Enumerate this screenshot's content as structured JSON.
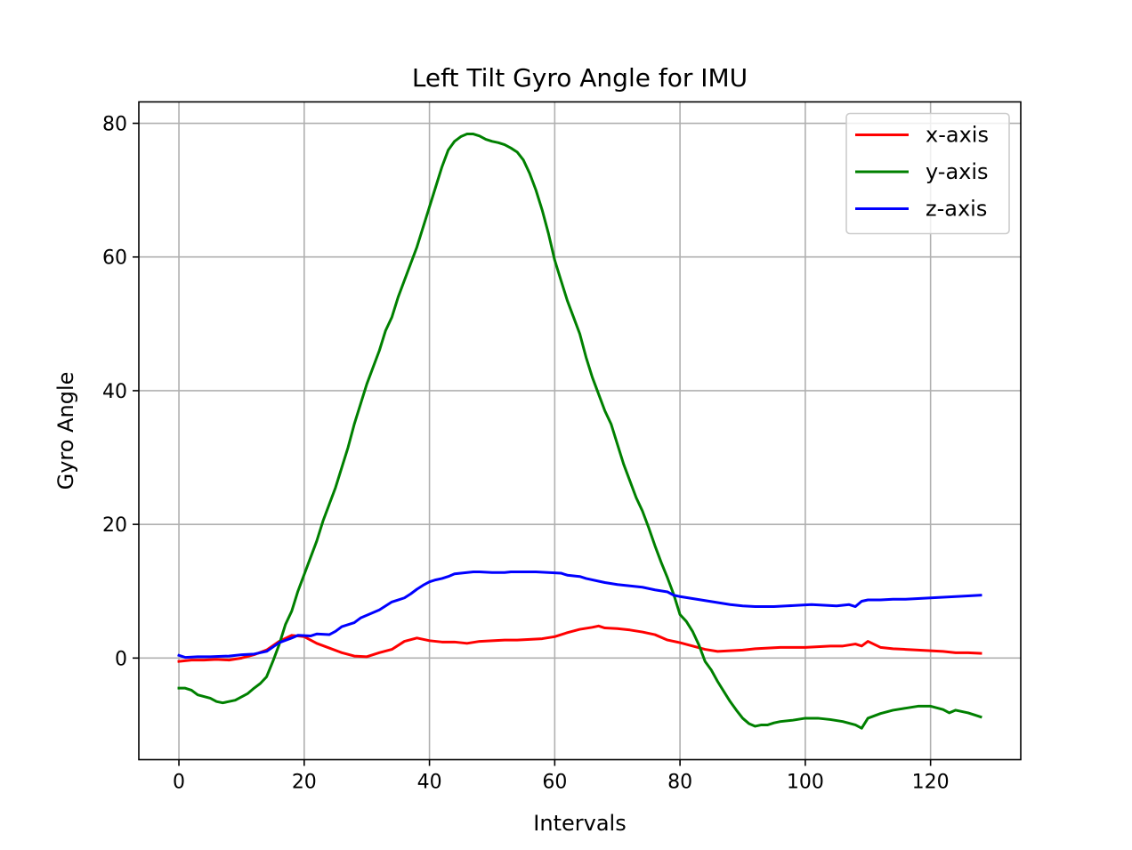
{
  "chart_data": {
    "type": "line",
    "title": "Left Tilt Gyro Angle for IMU",
    "xlabel": "Intervals",
    "ylabel": "Gyro Angle",
    "xlim": [
      -6.4,
      134.4
    ],
    "ylim": [
      -15.2,
      83.2
    ],
    "xticks": [
      0,
      20,
      40,
      60,
      80,
      100,
      120
    ],
    "yticks": [
      0,
      20,
      40,
      60,
      80
    ],
    "grid": true,
    "legend_position": "top-right",
    "series": [
      {
        "name": "x-axis",
        "color": "#ff0000",
        "points": [
          [
            0,
            -0.5
          ],
          [
            2,
            -0.3
          ],
          [
            4,
            -0.3
          ],
          [
            6,
            -0.2
          ],
          [
            8,
            -0.3
          ],
          [
            10,
            0
          ],
          [
            12,
            0.5
          ],
          [
            14,
            1.2
          ],
          [
            16,
            2.5
          ],
          [
            18,
            3.4
          ],
          [
            20,
            3.2
          ],
          [
            22,
            2.2
          ],
          [
            24,
            1.5
          ],
          [
            26,
            0.8
          ],
          [
            28,
            0.3
          ],
          [
            30,
            0.2
          ],
          [
            32,
            0.8
          ],
          [
            34,
            1.3
          ],
          [
            36,
            2.5
          ],
          [
            38,
            3
          ],
          [
            40,
            2.6
          ],
          [
            42,
            2.4
          ],
          [
            44,
            2.4
          ],
          [
            46,
            2.2
          ],
          [
            48,
            2.5
          ],
          [
            50,
            2.6
          ],
          [
            52,
            2.7
          ],
          [
            54,
            2.7
          ],
          [
            56,
            2.8
          ],
          [
            58,
            2.9
          ],
          [
            60,
            3.2
          ],
          [
            62,
            3.8
          ],
          [
            64,
            4.3
          ],
          [
            66,
            4.6
          ],
          [
            67,
            4.8
          ],
          [
            68,
            4.5
          ],
          [
            70,
            4.4
          ],
          [
            72,
            4.2
          ],
          [
            74,
            3.9
          ],
          [
            76,
            3.5
          ],
          [
            78,
            2.7
          ],
          [
            80,
            2.3
          ],
          [
            82,
            1.8
          ],
          [
            84,
            1.3
          ],
          [
            86,
            1
          ],
          [
            88,
            1.1
          ],
          [
            90,
            1.2
          ],
          [
            92,
            1.4
          ],
          [
            94,
            1.5
          ],
          [
            96,
            1.6
          ],
          [
            98,
            1.6
          ],
          [
            100,
            1.6
          ],
          [
            102,
            1.7
          ],
          [
            104,
            1.8
          ],
          [
            106,
            1.8
          ],
          [
            108,
            2.1
          ],
          [
            109,
            1.8
          ],
          [
            110,
            2.5
          ],
          [
            112,
            1.6
          ],
          [
            114,
            1.4
          ],
          [
            116,
            1.3
          ],
          [
            118,
            1.2
          ],
          [
            120,
            1.1
          ],
          [
            122,
            1
          ],
          [
            124,
            0.8
          ],
          [
            126,
            0.8
          ],
          [
            128,
            0.7
          ]
        ]
      },
      {
        "name": "y-axis",
        "color": "#008000",
        "points": [
          [
            0,
            -4.5
          ],
          [
            1,
            -4.5
          ],
          [
            2,
            -4.8
          ],
          [
            3,
            -5.5
          ],
          [
            5,
            -6
          ],
          [
            6,
            -6.5
          ],
          [
            7,
            -6.7
          ],
          [
            9,
            -6.3
          ],
          [
            11,
            -5.3
          ],
          [
            12,
            -4.5
          ],
          [
            13,
            -3.8
          ],
          [
            14,
            -2.8
          ],
          [
            15,
            -0.5
          ],
          [
            16,
            2
          ],
          [
            17,
            5
          ],
          [
            18,
            7
          ],
          [
            19,
            10
          ],
          [
            20,
            12.5
          ],
          [
            21,
            15
          ],
          [
            22,
            17.5
          ],
          [
            23,
            20.5
          ],
          [
            24,
            23
          ],
          [
            25,
            25.5
          ],
          [
            26,
            28.5
          ],
          [
            27,
            31.5
          ],
          [
            28,
            35
          ],
          [
            29,
            38
          ],
          [
            30,
            41
          ],
          [
            31,
            43.5
          ],
          [
            32,
            46
          ],
          [
            33,
            49
          ],
          [
            34,
            51
          ],
          [
            35,
            54
          ],
          [
            36,
            56.5
          ],
          [
            37,
            59
          ],
          [
            38,
            61.5
          ],
          [
            39,
            64.5
          ],
          [
            40,
            67.5
          ],
          [
            41,
            70.5
          ],
          [
            42,
            73.5
          ],
          [
            43,
            76
          ],
          [
            44,
            77.3
          ],
          [
            45,
            78
          ],
          [
            46,
            78.4
          ],
          [
            47,
            78.4
          ],
          [
            48,
            78.1
          ],
          [
            49,
            77.6
          ],
          [
            50,
            77.3
          ],
          [
            51,
            77.1
          ],
          [
            52,
            76.8
          ],
          [
            53,
            76.3
          ],
          [
            54,
            75.7
          ],
          [
            55,
            74.5
          ],
          [
            56,
            72.5
          ],
          [
            57,
            70
          ],
          [
            58,
            67
          ],
          [
            59,
            63.5
          ],
          [
            60,
            59.5
          ],
          [
            61,
            56.5
          ],
          [
            62,
            53.5
          ],
          [
            63,
            51
          ],
          [
            64,
            48.5
          ],
          [
            65,
            45
          ],
          [
            66,
            42
          ],
          [
            67,
            39.5
          ],
          [
            68,
            37
          ],
          [
            69,
            35
          ],
          [
            70,
            32
          ],
          [
            71,
            29
          ],
          [
            72,
            26.5
          ],
          [
            73,
            24
          ],
          [
            74,
            22
          ],
          [
            75,
            19.5
          ],
          [
            76,
            16.8
          ],
          [
            77,
            14.3
          ],
          [
            78,
            12
          ],
          [
            79,
            9.5
          ],
          [
            80,
            6.5
          ],
          [
            81,
            5.5
          ],
          [
            82,
            4
          ],
          [
            83,
            2
          ],
          [
            84,
            -0.5
          ],
          [
            85,
            -1.8
          ],
          [
            86,
            -3.5
          ],
          [
            87,
            -5
          ],
          [
            88,
            -6.5
          ],
          [
            89,
            -7.8
          ],
          [
            90,
            -9
          ],
          [
            91,
            -9.8
          ],
          [
            92,
            -10.2
          ],
          [
            93,
            -10
          ],
          [
            94,
            -10
          ],
          [
            95,
            -9.7
          ],
          [
            96,
            -9.5
          ],
          [
            98,
            -9.3
          ],
          [
            100,
            -9
          ],
          [
            102,
            -9
          ],
          [
            104,
            -9.2
          ],
          [
            106,
            -9.5
          ],
          [
            108,
            -10
          ],
          [
            109,
            -10.5
          ],
          [
            110,
            -9
          ],
          [
            112,
            -8.3
          ],
          [
            114,
            -7.8
          ],
          [
            116,
            -7.5
          ],
          [
            118,
            -7.2
          ],
          [
            120,
            -7.2
          ],
          [
            122,
            -7.7
          ],
          [
            123,
            -8.2
          ],
          [
            124,
            -7.8
          ],
          [
            126,
            -8.2
          ],
          [
            127,
            -8.5
          ],
          [
            128,
            -8.8
          ]
        ]
      },
      {
        "name": "z-axis",
        "color": "#0000ff",
        "points": [
          [
            0,
            0.4
          ],
          [
            1,
            0.1
          ],
          [
            3,
            0.2
          ],
          [
            5,
            0.2
          ],
          [
            8,
            0.3
          ],
          [
            10,
            0.5
          ],
          [
            12,
            0.6
          ],
          [
            14,
            1
          ],
          [
            16,
            2.3
          ],
          [
            18,
            3
          ],
          [
            19,
            3.4
          ],
          [
            21,
            3.3
          ],
          [
            22,
            3.6
          ],
          [
            24,
            3.5
          ],
          [
            25,
            4
          ],
          [
            26,
            4.7
          ],
          [
            28,
            5.3
          ],
          [
            29,
            6
          ],
          [
            30,
            6.4
          ],
          [
            31,
            6.8
          ],
          [
            32,
            7.2
          ],
          [
            33,
            7.8
          ],
          [
            34,
            8.4
          ],
          [
            35,
            8.7
          ],
          [
            36,
            9
          ],
          [
            37,
            9.6
          ],
          [
            38,
            10.3
          ],
          [
            39,
            10.9
          ],
          [
            40,
            11.4
          ],
          [
            41,
            11.7
          ],
          [
            42,
            11.9
          ],
          [
            43,
            12.2
          ],
          [
            44,
            12.6
          ],
          [
            46,
            12.8
          ],
          [
            47,
            12.9
          ],
          [
            48,
            12.9
          ],
          [
            50,
            12.8
          ],
          [
            52,
            12.8
          ],
          [
            53,
            12.9
          ],
          [
            55,
            12.9
          ],
          [
            57,
            12.9
          ],
          [
            59,
            12.8
          ],
          [
            61,
            12.7
          ],
          [
            62,
            12.4
          ],
          [
            64,
            12.2
          ],
          [
            65,
            11.9
          ],
          [
            67,
            11.5
          ],
          [
            68,
            11.3
          ],
          [
            70,
            11
          ],
          [
            72,
            10.8
          ],
          [
            74,
            10.6
          ],
          [
            76,
            10.2
          ],
          [
            78,
            9.9
          ],
          [
            79,
            9.4
          ],
          [
            80,
            9.2
          ],
          [
            82,
            8.9
          ],
          [
            84,
            8.6
          ],
          [
            86,
            8.3
          ],
          [
            88,
            8
          ],
          [
            90,
            7.8
          ],
          [
            92,
            7.7
          ],
          [
            95,
            7.7
          ],
          [
            97,
            7.8
          ],
          [
            99,
            7.9
          ],
          [
            101,
            8
          ],
          [
            103,
            7.9
          ],
          [
            105,
            7.8
          ],
          [
            107,
            8
          ],
          [
            108,
            7.7
          ],
          [
            109,
            8.5
          ],
          [
            110,
            8.7
          ],
          [
            112,
            8.7
          ],
          [
            114,
            8.8
          ],
          [
            116,
            8.8
          ],
          [
            118,
            8.9
          ],
          [
            120,
            9
          ],
          [
            122,
            9.1
          ],
          [
            124,
            9.2
          ],
          [
            126,
            9.3
          ],
          [
            128,
            9.4
          ]
        ]
      }
    ]
  }
}
